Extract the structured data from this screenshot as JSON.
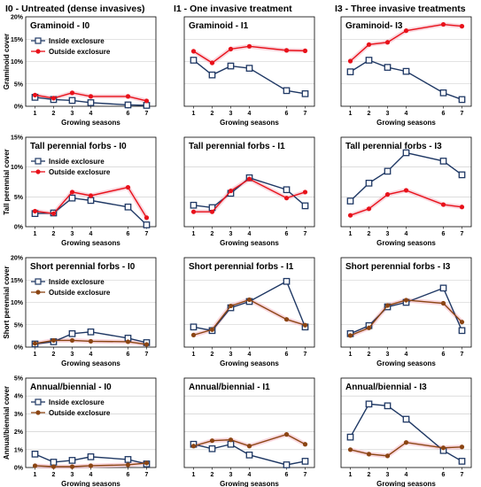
{
  "column_titles": [
    "I0 - Untreated (dense invasives)",
    "I1 - One  invasive treatment",
    "I3 - Three invasive treatments"
  ],
  "colors": {
    "inside": "#1f3864",
    "outside_red": "#e8111a",
    "outside_brown": "#8b4513",
    "band": "#f7c6d0"
  },
  "chart_data": [
    {
      "row": 0,
      "type": "line",
      "ylabel": "Graminoid cover",
      "yticks": [
        "0%",
        "5%",
        "10%",
        "15%",
        "20%"
      ],
      "ylim": [
        0,
        20
      ],
      "xlabel": "Growing seasons",
      "xticks": [
        "1",
        "2",
        "3",
        "4",
        "6",
        "7"
      ],
      "x": [
        1,
        2,
        3,
        4,
        6,
        7
      ],
      "outside_color": "outside_red",
      "panels": [
        {
          "title": "Graminoid - I0",
          "legend": true,
          "series": [
            {
              "name": "Inside exclosure",
              "values": [
                2.0,
                1.5,
                1.3,
                0.8,
                0.3,
                0.2
              ]
            },
            {
              "name": "Outside exclosure",
              "values": [
                2.5,
                1.8,
                3.0,
                2.2,
                2.2,
                1.2
              ]
            }
          ]
        },
        {
          "title": "Graminoid - I1",
          "legend": false,
          "series": [
            {
              "name": "Inside exclosure",
              "values": [
                10.3,
                7.0,
                9.0,
                8.5,
                3.5,
                2.8
              ]
            },
            {
              "name": "Outside exclosure",
              "values": [
                12.3,
                9.7,
                12.8,
                13.4,
                12.5,
                12.4
              ]
            }
          ]
        },
        {
          "title": "Graminoid- I3",
          "legend": false,
          "series": [
            {
              "name": "Inside exclosure",
              "values": [
                7.7,
                10.3,
                8.7,
                7.8,
                3.0,
                1.5
              ]
            },
            {
              "name": "Outside exclosure",
              "values": [
                10.1,
                13.8,
                14.3,
                16.9,
                18.3,
                17.9
              ]
            }
          ]
        }
      ]
    },
    {
      "row": 1,
      "type": "line",
      "ylabel": "Tall perennial cover",
      "yticks": [
        "0%",
        "5%",
        "10%",
        "15%"
      ],
      "ylim": [
        0,
        15
      ],
      "xlabel": "Growing seasons",
      "xticks": [
        "1",
        "2",
        "3",
        "4",
        "6",
        "7"
      ],
      "x": [
        1,
        2,
        3,
        4,
        6,
        7
      ],
      "outside_color": "outside_red",
      "panels": [
        {
          "title": "Tall perennial forbs - I0",
          "legend": true,
          "series": [
            {
              "name": "Inside exclosure",
              "values": [
                2.2,
                2.3,
                4.8,
                4.4,
                3.3,
                0.3
              ]
            },
            {
              "name": "Outside exclosure",
              "values": [
                2.6,
                2.2,
                5.8,
                5.2,
                6.6,
                1.5
              ]
            }
          ]
        },
        {
          "title": "Tall perennial forbs - I1",
          "legend": false,
          "series": [
            {
              "name": "Inside exclosure",
              "values": [
                3.6,
                3.2,
                5.6,
                8.2,
                6.2,
                3.5
              ]
            },
            {
              "name": "Outside exclosure",
              "values": [
                2.5,
                2.5,
                6.0,
                8.0,
                4.8,
                5.8
              ]
            }
          ]
        },
        {
          "title": "Tall perennial forbs - I3",
          "legend": false,
          "series": [
            {
              "name": "Inside exclosure",
              "values": [
                4.3,
                7.3,
                9.3,
                12.4,
                11.0,
                8.7
              ]
            },
            {
              "name": "Outside exclosure",
              "values": [
                1.9,
                3.0,
                5.4,
                6.1,
                3.7,
                3.3
              ]
            }
          ]
        }
      ]
    },
    {
      "row": 2,
      "type": "line",
      "ylabel": "Short perennial cover",
      "yticks": [
        "0%",
        "5%",
        "10%",
        "15%",
        "20%"
      ],
      "ylim": [
        0,
        20
      ],
      "xlabel": "Growing seasons",
      "xticks": [
        "1",
        "2",
        "3",
        "4",
        "6",
        "7"
      ],
      "x": [
        1,
        2,
        3,
        4,
        6,
        7
      ],
      "outside_color": "outside_brown",
      "panels": [
        {
          "title": "Short perennial forbs - I0",
          "legend": true,
          "series": [
            {
              "name": "Inside exclosure",
              "values": [
                0.7,
                1.2,
                3.0,
                3.4,
                2.0,
                1.0
              ]
            },
            {
              "name": "Outside exclosure",
              "values": [
                0.8,
                1.5,
                1.5,
                1.3,
                1.2,
                0.6
              ]
            }
          ]
        },
        {
          "title": "Short perennial forbs - I1",
          "legend": false,
          "series": [
            {
              "name": "Inside exclosure",
              "values": [
                4.5,
                3.7,
                8.8,
                10.2,
                14.7,
                4.5
              ]
            },
            {
              "name": "Outside exclosure",
              "values": [
                2.7,
                3.9,
                9.2,
                10.6,
                6.2,
                4.9
              ]
            }
          ]
        },
        {
          "title": "Short perennial forbs - I3",
          "legend": false,
          "series": [
            {
              "name": "Inside exclosure",
              "values": [
                3.0,
                4.8,
                9.0,
                10.0,
                13.2,
                3.7
              ]
            },
            {
              "name": "Outside exclosure",
              "values": [
                2.6,
                4.3,
                9.3,
                10.5,
                9.8,
                5.6
              ]
            }
          ]
        }
      ]
    },
    {
      "row": 3,
      "type": "line",
      "ylabel": "Annual/biennial cover",
      "yticks": [
        "0%",
        "1%",
        "2%",
        "3%",
        "4%",
        "5%"
      ],
      "ylim": [
        0,
        5
      ],
      "xlabel": "Growing seasons",
      "xticks": [
        "1",
        "2",
        "3",
        "4",
        "6",
        "7"
      ],
      "x": [
        1,
        2,
        3,
        4,
        6,
        7
      ],
      "outside_color": "outside_brown",
      "panels": [
        {
          "title": "Annual/biennial - I0",
          "legend": true,
          "series": [
            {
              "name": "Inside exclosure",
              "values": [
                0.75,
                0.3,
                0.4,
                0.6,
                0.45,
                0.2
              ]
            },
            {
              "name": "Outside exclosure",
              "values": [
                0.1,
                0.05,
                0.05,
                0.1,
                0.15,
                0.25
              ]
            }
          ]
        },
        {
          "title": "Annual/biennial - I1",
          "legend": false,
          "series": [
            {
              "name": "Inside exclosure",
              "values": [
                1.3,
                1.05,
                1.3,
                0.7,
                0.15,
                0.35
              ]
            },
            {
              "name": "Outside exclosure",
              "values": [
                1.2,
                1.5,
                1.55,
                1.2,
                1.85,
                1.3
              ]
            }
          ]
        },
        {
          "title": "Annual/biennial - I3",
          "legend": false,
          "series": [
            {
              "name": "Inside exclosure",
              "values": [
                1.7,
                3.55,
                3.45,
                2.7,
                0.95,
                0.35
              ]
            },
            {
              "name": "Outside exclosure",
              "values": [
                1.0,
                0.75,
                0.65,
                1.4,
                1.1,
                1.15
              ]
            }
          ]
        }
      ]
    }
  ]
}
